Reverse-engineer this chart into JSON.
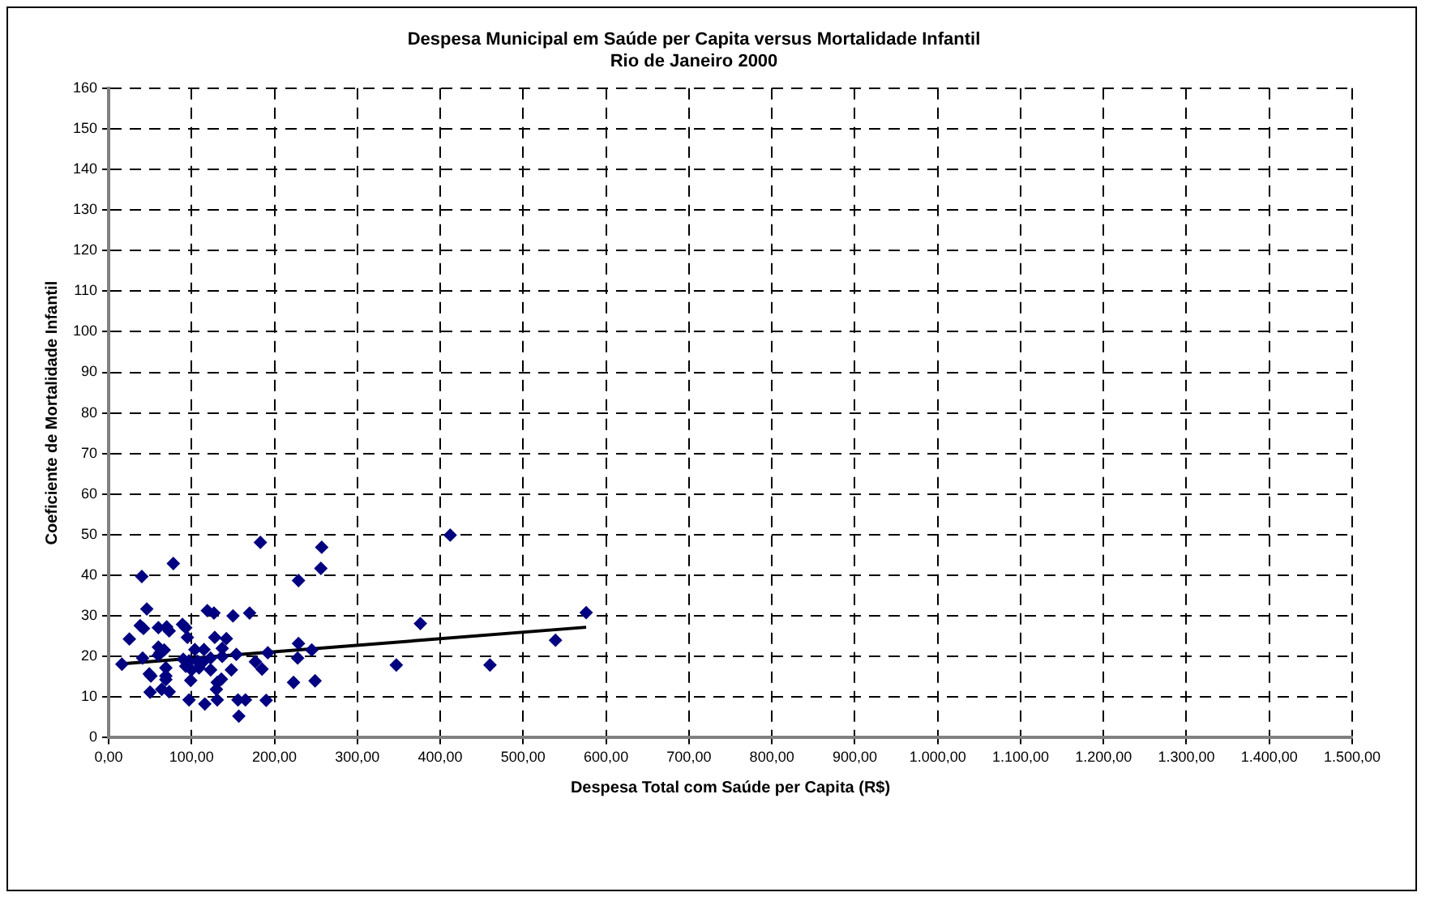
{
  "chart_data": {
    "type": "scatter",
    "title": "Despesa Municipal em Saúde per Capita versus Mortalidade Infantil\nRio de Janeiro 2000",
    "xlabel": "Despesa Total com Saúde per Capita (R$)",
    "ylabel": "Coeficiente de Mortalidade Infantil",
    "xlim": [
      0,
      1500
    ],
    "xticks": [
      {
        "value": 0,
        "label": "0,00"
      },
      {
        "value": 100,
        "label": "100,00"
      },
      {
        "value": 200,
        "label": "200,00"
      },
      {
        "value": 300,
        "label": "300,00"
      },
      {
        "value": 400,
        "label": "400,00"
      },
      {
        "value": 500,
        "label": "500,00"
      },
      {
        "value": 600,
        "label": "600,00"
      },
      {
        "value": 700,
        "label": "700,00"
      },
      {
        "value": 800,
        "label": "800,00"
      },
      {
        "value": 900,
        "label": "900,00"
      },
      {
        "value": 1000,
        "label": "1.000,00"
      },
      {
        "value": 1100,
        "label": "1.100,00"
      },
      {
        "value": 1200,
        "label": "1.200,00"
      },
      {
        "value": 1300,
        "label": "1.300,00"
      },
      {
        "value": 1400,
        "label": "1.400,00"
      },
      {
        "value": 1500,
        "label": "1.500,00"
      }
    ],
    "ylim": [
      0,
      160
    ],
    "yticks": [
      0,
      10,
      20,
      30,
      40,
      50,
      60,
      70,
      80,
      90,
      100,
      110,
      120,
      130,
      140,
      150,
      160
    ],
    "grid": true,
    "legend": false,
    "series": [
      {
        "color": "#000080",
        "marker": "diamond",
        "x": [
          16,
          25,
          40,
          46,
          38,
          42,
          41,
          49,
          51,
          50,
          60,
          60,
          62,
          60,
          64,
          67,
          70,
          73,
          69,
          69,
          69,
          73,
          78,
          89,
          93,
          95,
          90,
          93,
          97,
          100,
          97,
          99,
          104,
          107,
          109,
          113,
          115,
          116,
          119,
          127,
          123,
          123,
          128,
          131,
          137,
          142,
          137,
          136,
          130,
          131,
          150,
          148,
          154,
          156,
          157,
          165,
          170,
          177,
          183,
          185,
          192,
          190,
          229,
          229,
          228,
          223,
          257,
          256,
          245,
          249,
          376,
          347,
          460,
          412,
          576,
          539
        ],
        "values": [
          18.1,
          24.3,
          39.7,
          31.7,
          27.6,
          26.9,
          19.6,
          15.7,
          15.2,
          11.2,
          27.1,
          22.3,
          20.9,
          20.3,
          11.9,
          21.6,
          27.3,
          26.3,
          17.2,
          15.2,
          14.3,
          11.3,
          42.9,
          27.9,
          27.1,
          24.7,
          19.3,
          17.6,
          18.9,
          16.7,
          9.3,
          14.1,
          21.7,
          18.8,
          17.2,
          18.5,
          21.7,
          8.3,
          31.3,
          30.7,
          19.6,
          16.7,
          24.7,
          13.6,
          22,
          24.4,
          20,
          14.4,
          11.9,
          9.3,
          30,
          16.7,
          20.5,
          9.3,
          5.3,
          9.3,
          30.7,
          18.7,
          48.1,
          16.9,
          20.9,
          9.2,
          38.7,
          23.2,
          19.6,
          13.6,
          46.9,
          41.7,
          21.6,
          14,
          28.1,
          17.9,
          17.9,
          49.9,
          30.8,
          24
        ]
      },
      {
        "type": "line",
        "color": "#000000",
        "marker": "none",
        "line_style": "solid",
        "x": [
          16,
          576
        ],
        "values": [
          18.2,
          27.2
        ]
      }
    ]
  }
}
